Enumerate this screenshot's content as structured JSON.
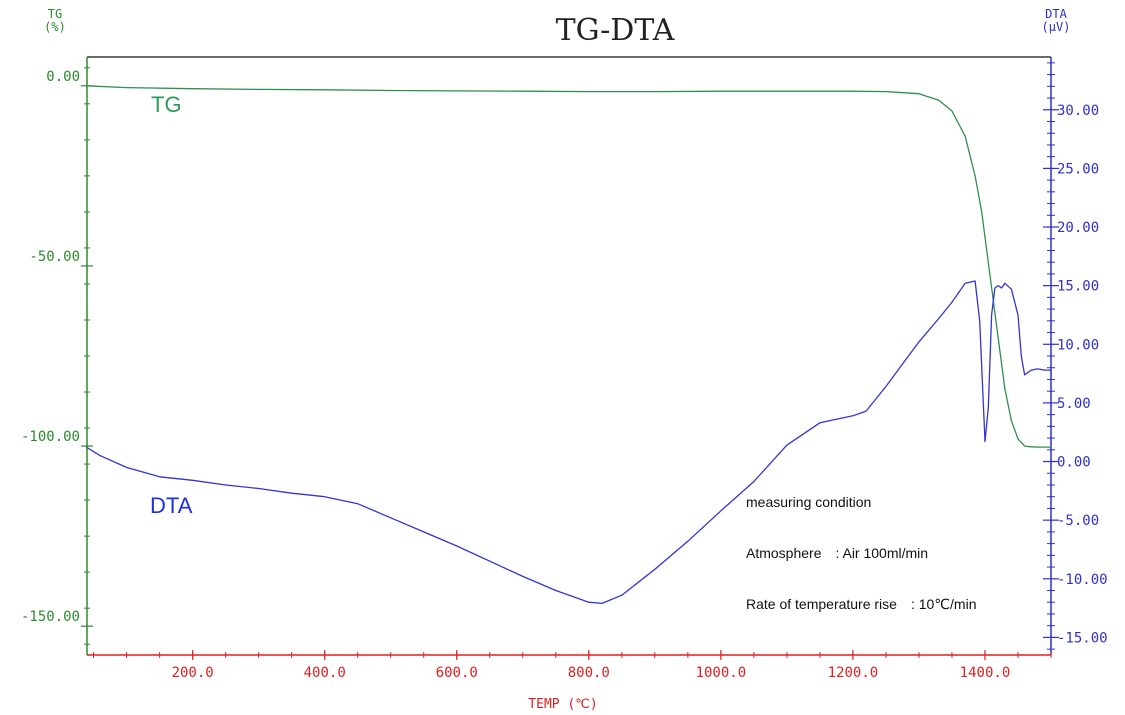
{
  "chart_data": {
    "type": "line",
    "title": "TG-DTA",
    "xlabel": "TEMP (℃)",
    "xlim": [
      40,
      1500
    ],
    "x_ticks": [
      200,
      400,
      600,
      800,
      1000,
      1200,
      1400
    ],
    "x_tick_labels": [
      "200.0",
      "400.0",
      "600.0",
      "800.0",
      "1000.0",
      "1200.0",
      "1400.0"
    ],
    "left_axis": {
      "label_line1": "TG",
      "label_line2": "(%)",
      "ylim": [
        -158,
        8
      ],
      "ticks": [
        0,
        -50,
        -100,
        -150
      ],
      "tick_labels": [
        "0.00",
        "-50.00",
        "-100.00",
        "-150.00"
      ],
      "color": "#2f8a2f"
    },
    "right_axis": {
      "label_line1": "DTA",
      "label_line2": "(μV)",
      "ylim": [
        -16.5,
        34.5
      ],
      "ticks": [
        30,
        25,
        20,
        15,
        10,
        5,
        0,
        -5,
        -10,
        -15
      ],
      "tick_labels": [
        "30.00",
        "25.00",
        "20.00",
        "15.00",
        "10.00",
        "5.00",
        "0.00",
        "-5.00",
        "-10.00",
        "-15.00"
      ],
      "color": "#2f2fd0"
    },
    "series": [
      {
        "name": "TG",
        "axis": "left",
        "color": "#2f8f4f",
        "x": [
          40,
          100,
          200,
          300,
          400,
          500,
          600,
          700,
          800,
          900,
          1000,
          1100,
          1200,
          1250,
          1300,
          1330,
          1350,
          1370,
          1385,
          1395,
          1400,
          1410,
          1420,
          1430,
          1440,
          1450,
          1460,
          1470,
          1480,
          1500
        ],
        "values": [
          0,
          -0.5,
          -0.8,
          -1.0,
          -1.1,
          -1.3,
          -1.4,
          -1.5,
          -1.6,
          -1.6,
          -1.5,
          -1.5,
          -1.5,
          -1.6,
          -2.2,
          -4,
          -7,
          -14,
          -25,
          -35,
          -42,
          -56,
          -70,
          -84,
          -93,
          -98,
          -100,
          -100.2,
          -100.3,
          -100.3
        ]
      },
      {
        "name": "DTA",
        "axis": "right",
        "color": "#3333d6",
        "x": [
          40,
          60,
          100,
          150,
          200,
          250,
          300,
          350,
          400,
          450,
          500,
          550,
          600,
          650,
          700,
          750,
          800,
          820,
          850,
          900,
          950,
          1000,
          1050,
          1100,
          1150,
          1200,
          1220,
          1250,
          1300,
          1330,
          1350,
          1370,
          1385,
          1392,
          1400,
          1405,
          1410,
          1415,
          1420,
          1425,
          1430,
          1440,
          1450,
          1455,
          1460,
          1470,
          1480,
          1490,
          1500
        ],
        "values": [
          1.2,
          0.5,
          -0.5,
          -1.3,
          -1.6,
          -2.0,
          -2.3,
          -2.7,
          -3.0,
          -3.6,
          -4.8,
          -6.0,
          -7.2,
          -8.5,
          -9.8,
          -11.0,
          -12.0,
          -12.1,
          -11.4,
          -9.2,
          -6.8,
          -4.2,
          -1.7,
          1.4,
          3.3,
          3.9,
          4.3,
          6.4,
          10.2,
          12.2,
          13.6,
          15.2,
          15.4,
          12.0,
          1.7,
          4.6,
          12.5,
          14.8,
          15.0,
          14.8,
          15.2,
          14.7,
          12.5,
          9.0,
          7.4,
          7.8,
          7.9,
          7.8,
          7.8
        ]
      }
    ],
    "annotations": {
      "tg_label": "TG",
      "dta_label": "DTA",
      "condition_title": "measuring condition",
      "condition_atmosphere": "Atmosphere　:  Air 100ml/min",
      "condition_rate": "Rate of temperature rise　:  10℃/min"
    },
    "x_axis_color": "#e02020",
    "grid": false
  }
}
